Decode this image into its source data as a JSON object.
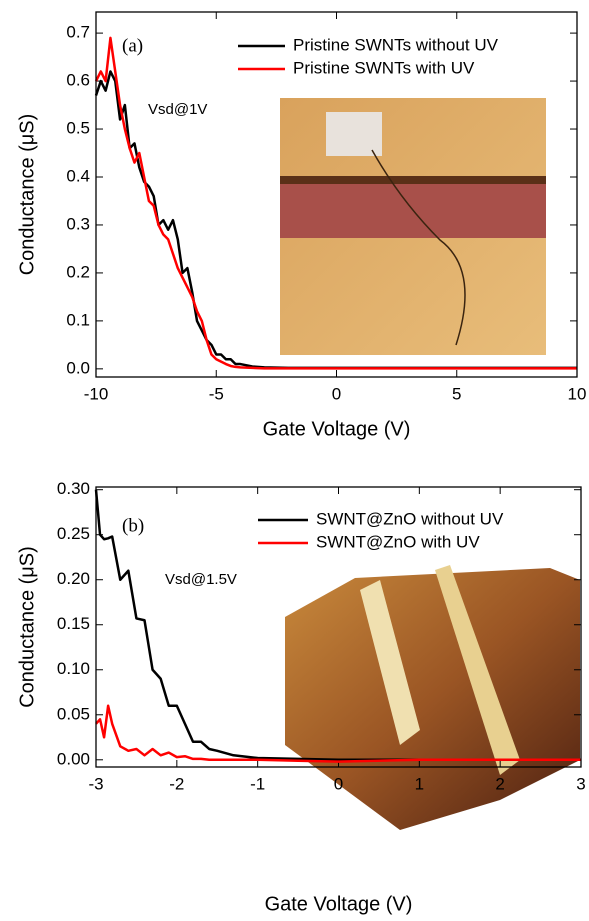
{
  "chart_data": [
    {
      "type": "line",
      "annotations": [
        "(a)",
        "Vsd@1V"
      ],
      "x_label": "Gate Voltage (V)",
      "y_label": "Conductance (μS)",
      "xlim": [
        -10,
        10
      ],
      "ylim": [
        -0.017,
        0.744
      ],
      "xticks": [
        -10,
        -5,
        0,
        5,
        10
      ],
      "yticks": [
        {
          "value": 0,
          "label": "0.0"
        },
        0.1,
        0.2,
        0.3,
        0.4,
        0.5,
        0.6,
        0.7
      ],
      "x": [
        -10,
        -9.8,
        -9.6,
        -9.4,
        -9.2,
        -9,
        -8.8,
        -8.6,
        -8.4,
        -8.2,
        -8,
        -7.8,
        -7.6,
        -7.4,
        -7.2,
        -7,
        -6.8,
        -6.6,
        -6.4,
        -6.2,
        -6,
        -5.8,
        -5.6,
        -5.4,
        -5.2,
        -5,
        -4.8,
        -4.6,
        -4.4,
        -4.2,
        -4,
        -3.5,
        -3,
        -2,
        0,
        2,
        4,
        6,
        8,
        10
      ],
      "series": [
        {
          "name": "Pristine SWNTs without UV",
          "color": "#000000",
          "values": [
            0.57,
            0.6,
            0.58,
            0.62,
            0.6,
            0.52,
            0.55,
            0.46,
            0.47,
            0.42,
            0.39,
            0.38,
            0.36,
            0.3,
            0.31,
            0.29,
            0.31,
            0.27,
            0.2,
            0.21,
            0.16,
            0.1,
            0.08,
            0.06,
            0.05,
            0.03,
            0.03,
            0.02,
            0.02,
            0.01,
            0.01,
            0.005,
            0.003,
            0.002,
            0.002,
            0.002,
            0.002,
            0.002,
            0.002,
            0.002
          ]
        },
        {
          "name": "Pristine SWNTs with UV",
          "color": "#ff0000",
          "values": [
            0.6,
            0.62,
            0.6,
            0.69,
            0.62,
            0.55,
            0.5,
            0.46,
            0.43,
            0.45,
            0.4,
            0.35,
            0.34,
            0.3,
            0.28,
            0.27,
            0.24,
            0.21,
            0.19,
            0.17,
            0.15,
            0.12,
            0.1,
            0.06,
            0.03,
            0.02,
            0.015,
            0.01,
            0.006,
            0.004,
            0.003,
            0.002,
            0.001,
            0.001,
            0.001,
            0.001,
            0.001,
            0.001,
            0.001,
            0.001
          ]
        }
      ]
    },
    {
      "type": "line",
      "annotations": [
        "(b)",
        "Vsd@1.5V"
      ],
      "x_label": "Gate Voltage (V)",
      "y_label": "Conductance (μS)",
      "xlim": [
        -3,
        3
      ],
      "ylim": [
        -0.008,
        0.303
      ],
      "xticks": [
        -3,
        -2,
        -1,
        0,
        1,
        2,
        3
      ],
      "yticks": [
        {
          "value": 0,
          "label": "0.00"
        },
        0.05,
        {
          "value": 0.1,
          "label": "0.10"
        },
        0.15,
        {
          "value": 0.2,
          "label": "0.20"
        },
        0.25,
        {
          "value": 0.3,
          "label": "0.30"
        }
      ],
      "x": [
        -3,
        -2.95,
        -2.9,
        -2.85,
        -2.8,
        -2.7,
        -2.6,
        -2.5,
        -2.4,
        -2.3,
        -2.2,
        -2.1,
        -2,
        -1.9,
        -1.8,
        -1.7,
        -1.6,
        -1.5,
        -1.3,
        -1.1,
        -1,
        -0.5,
        0,
        1,
        2,
        3
      ],
      "series": [
        {
          "name": "SWNT@ZnO without UV",
          "color": "#000000",
          "values": [
            0.3,
            0.25,
            0.245,
            0.246,
            0.248,
            0.2,
            0.21,
            0.157,
            0.155,
            0.1,
            0.09,
            0.06,
            0.06,
            0.04,
            0.02,
            0.02,
            0.012,
            0.01,
            0.005,
            0.003,
            0.002,
            0.001,
            0,
            0,
            0,
            0
          ]
        },
        {
          "name": "SWNT@ZnO with UV",
          "color": "#ff0000",
          "values": [
            0.04,
            0.045,
            0.025,
            0.06,
            0.04,
            0.015,
            0.01,
            0.012,
            0.005,
            0.012,
            0.005,
            0.008,
            0.003,
            0.004,
            0.001,
            0.001,
            0,
            0,
            0,
            0,
            0,
            -0.001,
            -0.002,
            0,
            0,
            0
          ]
        }
      ]
    }
  ]
}
